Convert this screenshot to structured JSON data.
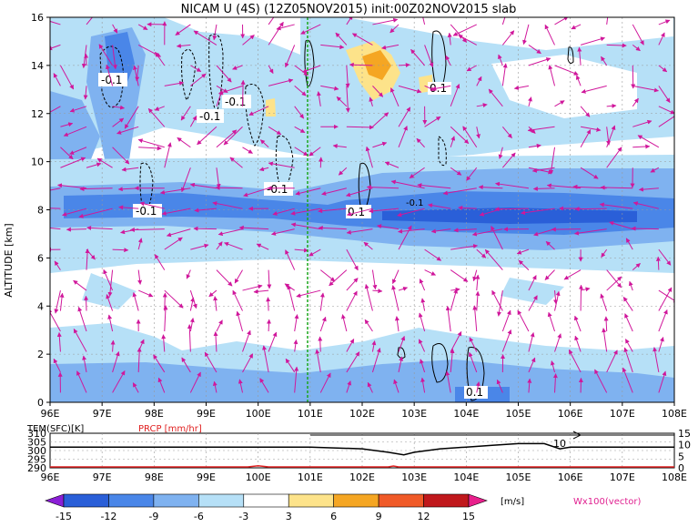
{
  "title": "NICAM U (4S) (12Z05NOV2015) init:00Z02NOV2015 slab",
  "main_panel": {
    "ylabel": "ALTITUDE [km]",
    "x_ticks": [
      "96E",
      "97E",
      "98E",
      "99E",
      "100E",
      "101E",
      "102E",
      "103E",
      "104E",
      "105E",
      "106E",
      "107E",
      "108E"
    ],
    "y_ticks": [
      "0",
      "2",
      "4",
      "6",
      "8",
      "10",
      "12",
      "14",
      "16"
    ],
    "contour_labels": [
      "-0.1",
      "-0.1",
      "-0.1",
      "-0.1",
      "-0.1",
      "-0.1",
      "0.1",
      "0.1",
      "0.1"
    ]
  },
  "bottom_panel": {
    "tem_label": "TEM(SFC)[K]",
    "prcp_label": "PRCP [mm/hr]",
    "left_ticks": [
      "310",
      "305",
      "300",
      "295",
      "290"
    ],
    "right_ticks": [
      "15",
      "10",
      "5",
      "0"
    ],
    "inline_label": "10",
    "x_ticks": [
      "96E",
      "97E",
      "98E",
      "99E",
      "100E",
      "101E",
      "102E",
      "103E",
      "104E",
      "105E",
      "106E",
      "107E",
      "108E"
    ]
  },
  "colorbar": {
    "labels": [
      "-15",
      "-12",
      "-9",
      "-6",
      "-3",
      "3",
      "6",
      "9",
      "12",
      "15"
    ],
    "unit": "[m/s]",
    "colors": [
      "#2a5fd8",
      "#4a86e8",
      "#7fb2f0",
      "#b6e0f7",
      "#ffffff",
      "#fde38a",
      "#f5a623",
      "#f05a28",
      "#c0181c"
    ],
    "under_color": "#8b1fd6",
    "over_color": "#e8208c"
  },
  "vector_label": "Wx100(vector)",
  "chart_data": {
    "type": "heatmap",
    "title": "NICAM U (4S) (12Z05NOV2015) init:00Z02NOV2015 slab",
    "xlabel": "",
    "ylabel": "ALTITUDE [km]",
    "xlim": [
      96,
      108
    ],
    "ylim": [
      0,
      16
    ],
    "grid": true,
    "u_bands_ms": [
      {
        "lon": [
          96,
          108
        ],
        "alt": [
          7.2,
          8.8
        ],
        "u": -9,
        "note": "easterly band near 8 km"
      },
      {
        "lon": [
          102,
          107.5
        ],
        "alt": [
          7.6,
          8.2
        ],
        "u": -12
      },
      {
        "lon": [
          96.5,
          98.5
        ],
        "alt": [
          13,
          15.5
        ],
        "u": -9
      },
      {
        "lon": [
          101.8,
          103.3
        ],
        "alt": [
          13.5,
          15
        ],
        "u": 6
      },
      {
        "lon": [
          102,
          102.8
        ],
        "alt": [
          14,
          14.6
        ],
        "u": 9
      }
    ],
    "inset_series": [
      {
        "name": "TEM(SFC)[K]",
        "x": [
          96,
          97,
          98,
          99,
          100,
          101,
          102,
          102.5,
          102.8,
          103,
          103.5,
          104,
          104.5,
          105,
          105.5,
          105.8,
          106,
          108
        ],
        "values": [
          302,
          302,
          302,
          302,
          302,
          302,
          301,
          299,
          297.5,
          299,
          301,
          302,
          303,
          304,
          304,
          301,
          302,
          302
        ]
      },
      {
        "name": "PRCP [mm/hr]",
        "x": [
          96,
          99.8,
          100,
          100.2,
          102.5,
          102.6,
          102.7,
          108
        ],
        "values": [
          0,
          0,
          0.5,
          0,
          0,
          0.4,
          0,
          0
        ]
      }
    ]
  }
}
